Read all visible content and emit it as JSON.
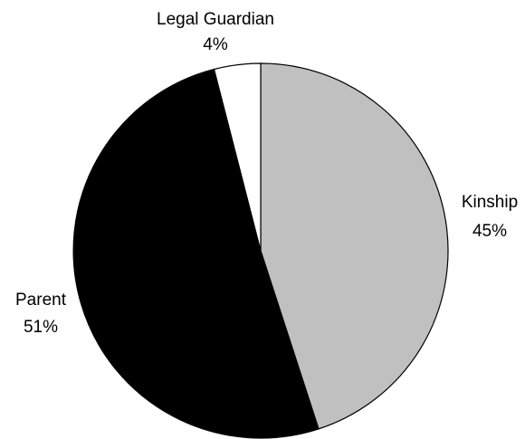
{
  "chart_data": {
    "type": "pie",
    "title": "",
    "start": "12 o'clock",
    "direction": "clockwise",
    "slices": [
      {
        "label": "Kinship",
        "value": 45,
        "value_label": "45%",
        "color": "#c0c0c0"
      },
      {
        "label": "Parent",
        "value": 51,
        "value_label": "51%",
        "color": "#000000"
      },
      {
        "label": "Legal Guardian",
        "value": 4,
        "value_label": "4%",
        "color": "#ffffff"
      }
    ],
    "legend": "none",
    "edge_color": "#000000"
  }
}
